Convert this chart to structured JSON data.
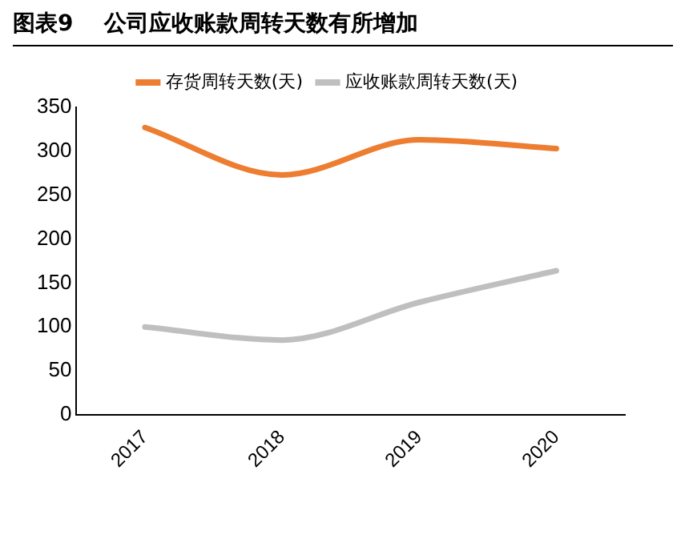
{
  "chart_data": {
    "type": "line",
    "title": "图表9    公司应收账款周转天数有所增加",
    "categories": [
      "2017",
      "2018",
      "2019",
      "2020"
    ],
    "series": [
      {
        "name": "存货周转天数(天)",
        "color": "#ed7d31",
        "values": [
          327,
          273,
          313,
          303
        ]
      },
      {
        "name": "应收账款周转天数(天)",
        "color": "#bfbfbf",
        "values": [
          100,
          85,
          128,
          164
        ]
      }
    ],
    "ylim": [
      0,
      350
    ],
    "yticks": [
      0,
      50,
      100,
      150,
      200,
      250,
      300,
      350
    ],
    "grid": false,
    "legend": "top",
    "marker": "none",
    "line_style": "solid"
  }
}
